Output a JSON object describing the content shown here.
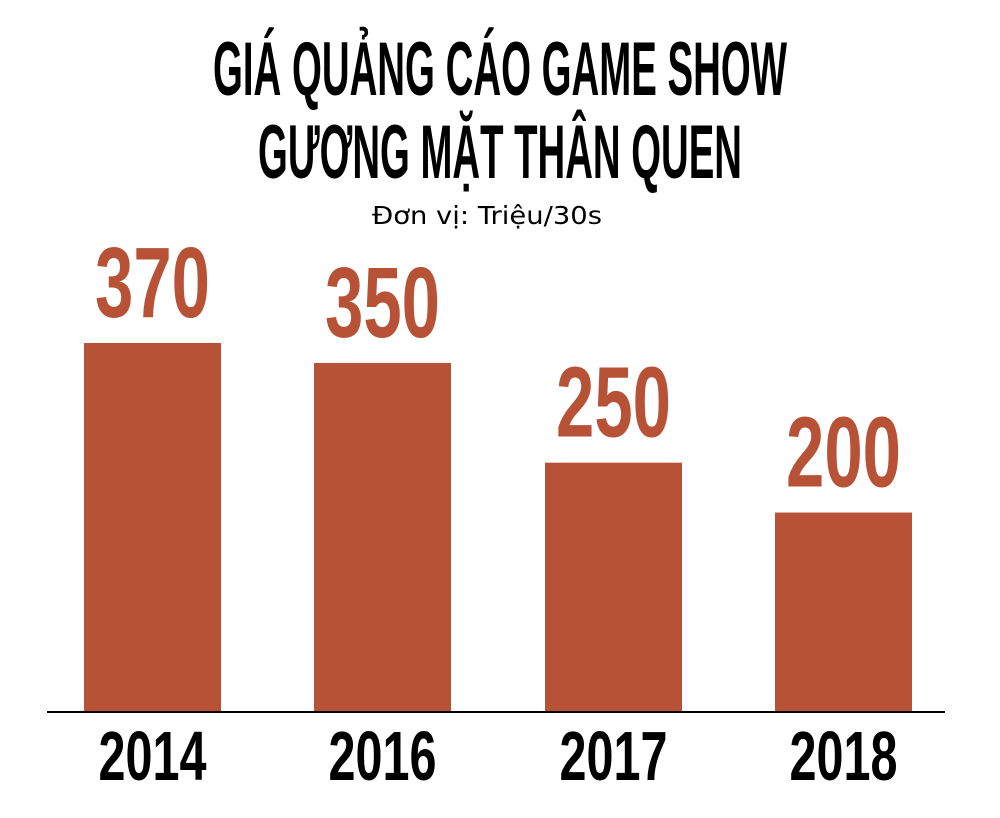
{
  "chart_data": {
    "type": "bar",
    "title_lines": [
      "GIÁ QUẢNG CÁO GAME SHOW",
      "GƯƠNG MẶT THÂN QUEN"
    ],
    "subtitle": "Đơn vị: Triệu/30s",
    "categories": [
      "2014",
      "2016",
      "2017",
      "2018"
    ],
    "values": [
      370,
      350,
      250,
      200
    ],
    "value_labels": [
      "370",
      "350",
      "250",
      "200"
    ],
    "xlabel": "",
    "ylabel": "",
    "ylim": [
      0,
      370
    ],
    "grid": false,
    "legend": "none",
    "bar_color": "#b85237",
    "label_color": "#b85237",
    "axis_color": "#000000"
  }
}
